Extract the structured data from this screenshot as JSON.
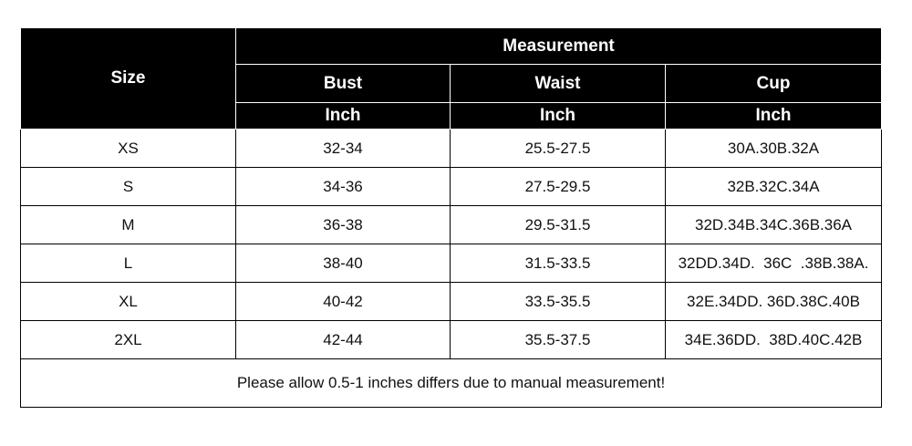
{
  "table": {
    "header": {
      "size": "Size",
      "group": "Measurement",
      "columns": [
        "Bust",
        "Waist",
        "Cup"
      ],
      "units": [
        "Inch",
        "Inch",
        "Inch"
      ]
    },
    "rows": [
      [
        "XS",
        "32-34",
        "25.5-27.5",
        "30A.30B.32A"
      ],
      [
        "S",
        "34-36",
        "27.5-29.5",
        "32B.32C.34A"
      ],
      [
        "M",
        "36-38",
        "29.5-31.5",
        "32D.34B.34C.36B.36A"
      ],
      [
        "L",
        "38-40",
        "31.5-33.5",
        "32DD.34D.  36C  .38B.38A."
      ],
      [
        "XL",
        "40-42",
        "33.5-35.5",
        "32E.34DD. 36D.38C.40B"
      ],
      [
        "2XL",
        "42-44",
        "35.5-37.5",
        "34E.36DD.  38D.40C.42B"
      ]
    ],
    "footer": "Please allow 0.5-1 inches differs due to manual measurement!"
  }
}
